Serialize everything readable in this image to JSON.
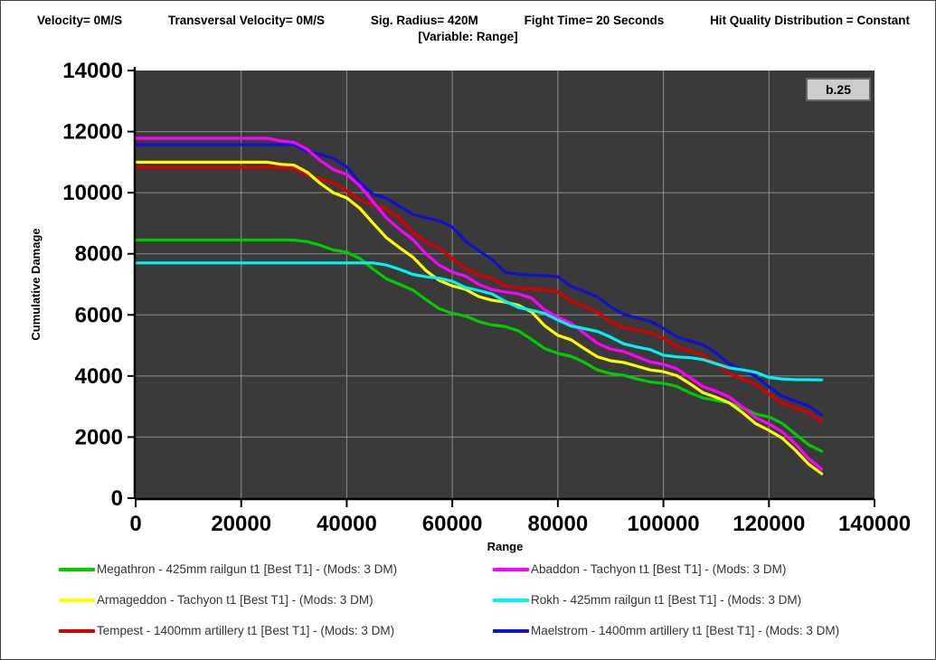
{
  "header": {
    "params": [
      "Velocity= 0M/S",
      "Transversal Velocity= 0M/S",
      "Sig. Radius= 420M",
      "Fight Time= 20 Seconds",
      "Hit Quality Distribution = Constant"
    ],
    "variable_line": "[Variable: Range]"
  },
  "chart_data": {
    "type": "line",
    "xlabel": "Range",
    "ylabel": "Cumulative Damage",
    "xlim": [
      0,
      140000
    ],
    "ylim": [
      0,
      14000
    ],
    "xtick_step": 20000,
    "ytick_step": 2000,
    "grid": true,
    "legend_position": "bottom",
    "badge": "b.25",
    "colors": {
      "plot_bg": "#3A3A3A",
      "grid": "#8C8C8C",
      "axis": "#000000",
      "badge_bg": "#CCCCCC",
      "badge_border": "#666666"
    },
    "x": [
      0,
      5000,
      10000,
      15000,
      20000,
      25000,
      30000,
      35000,
      40000,
      45000,
      50000,
      55000,
      60000,
      65000,
      70000,
      75000,
      80000,
      85000,
      90000,
      95000,
      100000,
      105000,
      110000,
      115000,
      120000,
      125000,
      130000
    ],
    "series": [
      {
        "label": "Megathron - 425mm railgun t1 [Best T1] - (Mods: 3 DM)",
        "ship": "Megathron",
        "color": "#00CC00",
        "values": [
          8450,
          8450,
          8450,
          8450,
          8450,
          8450,
          8450,
          8280,
          8050,
          7500,
          7000,
          6500,
          6050,
          5780,
          5620,
          5200,
          4740,
          4450,
          4080,
          3900,
          3760,
          3450,
          3200,
          2950,
          2660,
          2100,
          1540
        ]
      },
      {
        "label": "Tempest - 1400mm artillery t1 [Best T1] - (Mods: 3 DM)",
        "ship": "Tempest",
        "color": "#D60000",
        "values": [
          10830,
          10830,
          10830,
          10830,
          10830,
          10830,
          10800,
          10450,
          10060,
          9600,
          9175,
          8380,
          7850,
          7310,
          6950,
          6850,
          6750,
          6280,
          5770,
          5500,
          5240,
          4820,
          4400,
          3900,
          3400,
          2950,
          2520
        ]
      },
      {
        "label": "Armageddon - Tachyon t1 [Best T1] - (Mods: 3 DM)",
        "ship": "Armageddon",
        "color": "#FFFF00",
        "values": [
          11000,
          11000,
          11000,
          11000,
          11000,
          11000,
          10900,
          10300,
          9830,
          9000,
          8200,
          7450,
          6950,
          6600,
          6420,
          6100,
          5330,
          4900,
          4500,
          4320,
          4140,
          3750,
          3300,
          2800,
          2220,
          1570,
          800
        ]
      },
      {
        "label": "Maelstrom - 1400mm artillery t1 [Best T1] - (Mods: 3 DM)",
        "ship": "Maelstrom",
        "color": "#1111CC",
        "values": [
          11570,
          11570,
          11570,
          11570,
          11570,
          11570,
          11570,
          11250,
          10850,
          9950,
          9560,
          9175,
          8880,
          8100,
          7400,
          7300,
          7250,
          6770,
          6270,
          5900,
          5560,
          5150,
          4750,
          4200,
          3640,
          3180,
          2720
        ]
      },
      {
        "label": "Abaddon - Tachyon t1 [Best T1] - (Mods: 3 DM)",
        "ship": "Abaddon",
        "color": "#FF00FF",
        "values": [
          11780,
          11780,
          11780,
          11780,
          11780,
          11780,
          11650,
          11050,
          10600,
          9700,
          8800,
          8000,
          7400,
          7000,
          6750,
          6550,
          5920,
          5400,
          4880,
          4630,
          4380,
          3950,
          3500,
          2980,
          2430,
          1780,
          950
        ]
      },
      {
        "label": "Rokh - 425mm railgun t1 [Best T1] - (Mods: 3 DM)",
        "ship": "Rokh",
        "color": "#00F2F2",
        "values": [
          7700,
          7700,
          7700,
          7700,
          7700,
          7700,
          7700,
          7700,
          7700,
          7700,
          7490,
          7250,
          7100,
          6800,
          6450,
          6150,
          5830,
          5550,
          5270,
          4950,
          4680,
          4600,
          4400,
          4200,
          3950,
          3880,
          3870
        ]
      }
    ],
    "legend_order": [
      0,
      4,
      2,
      5,
      1,
      3
    ]
  }
}
